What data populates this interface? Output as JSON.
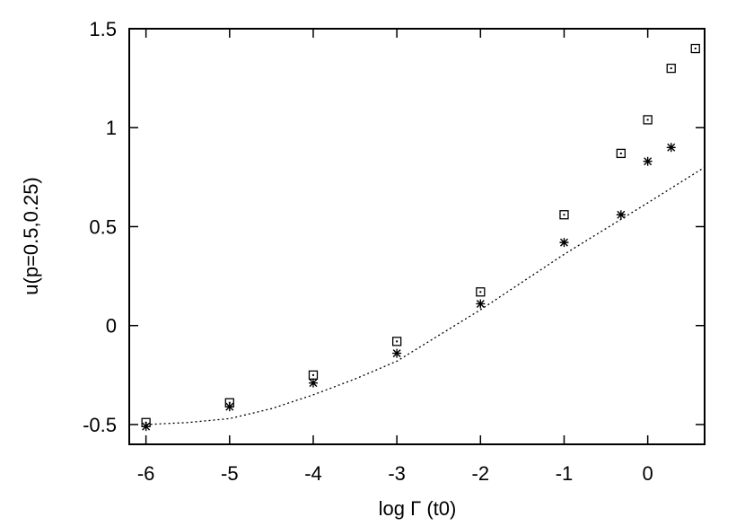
{
  "chart_data": {
    "type": "scatter",
    "x_label": "log Γ (t0)",
    "y_label": "u(p=0.5,0.25)",
    "xlim": [
      -6.2,
      0.68
    ],
    "ylim": [
      -0.6,
      1.5
    ],
    "xticks": [
      -6,
      -5,
      -4,
      -3,
      -2,
      -1,
      0
    ],
    "yticks": [
      -0.5,
      0,
      0.5,
      1,
      1.5
    ],
    "series": [
      {
        "marker": "square",
        "color": "#000000",
        "x": [
          -6,
          -5,
          -4,
          -3,
          -2,
          -1,
          -0.32,
          0,
          0.28,
          0.57
        ],
        "values": [
          -0.49,
          -0.39,
          -0.25,
          -0.08,
          0.17,
          0.56,
          0.87,
          1.04,
          1.3,
          1.4
        ]
      },
      {
        "marker": "star",
        "color": "#000000",
        "x": [
          -6,
          -5,
          -4,
          -3,
          -2,
          -1,
          -0.32,
          0,
          0.28
        ],
        "values": [
          -0.51,
          -0.41,
          -0.29,
          -0.14,
          0.11,
          0.42,
          0.56,
          0.83,
          0.9
        ]
      },
      {
        "marker": "dotted-line",
        "color": "#000000",
        "x": [
          -6,
          -5.5,
          -5,
          -4.5,
          -4,
          -3.5,
          -3,
          -2.5,
          -2,
          -1.5,
          -1,
          -0.5,
          0,
          0.68
        ],
        "values": [
          -0.5,
          -0.49,
          -0.47,
          -0.42,
          -0.35,
          -0.27,
          -0.18,
          -0.05,
          0.08,
          0.22,
          0.36,
          0.49,
          0.62,
          0.8
        ]
      }
    ]
  }
}
